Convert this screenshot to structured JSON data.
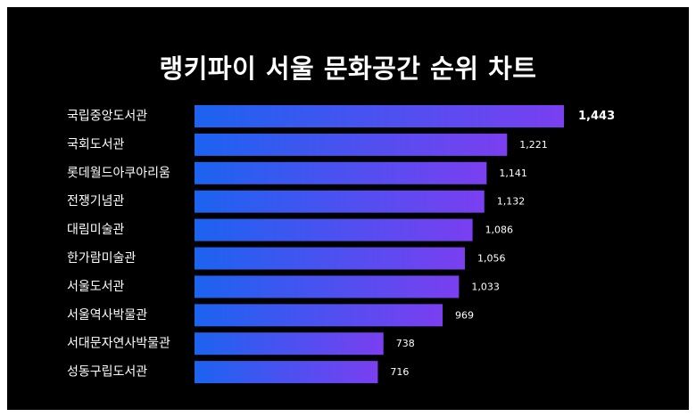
{
  "chart_data": {
    "type": "bar",
    "orientation": "horizontal",
    "title": "랭키파이 서울 문화공간 순위 차트",
    "categories": [
      "국립중앙도서관",
      "국회도서관",
      "롯데월드아쿠아리움",
      "전쟁기념관",
      "대림미술관",
      "한가람미술관",
      "서울도서관",
      "서울역사박물관",
      "서대문자연사박물관",
      "성동구립도서관"
    ],
    "values": [
      1443,
      1221,
      1141,
      1132,
      1086,
      1056,
      1033,
      969,
      738,
      716
    ],
    "value_labels": [
      "1,443",
      "1,221",
      "1,141",
      "1,132",
      "1,086",
      "1,056",
      "1,033",
      "969",
      "738",
      "716"
    ],
    "xlabel": "",
    "ylabel": "",
    "grid": false,
    "legend": "none",
    "colors": {
      "background": "#000000",
      "bar_start": "#1c63f0",
      "bar_end": "#7a3ff0",
      "text": "#ffffff"
    }
  }
}
